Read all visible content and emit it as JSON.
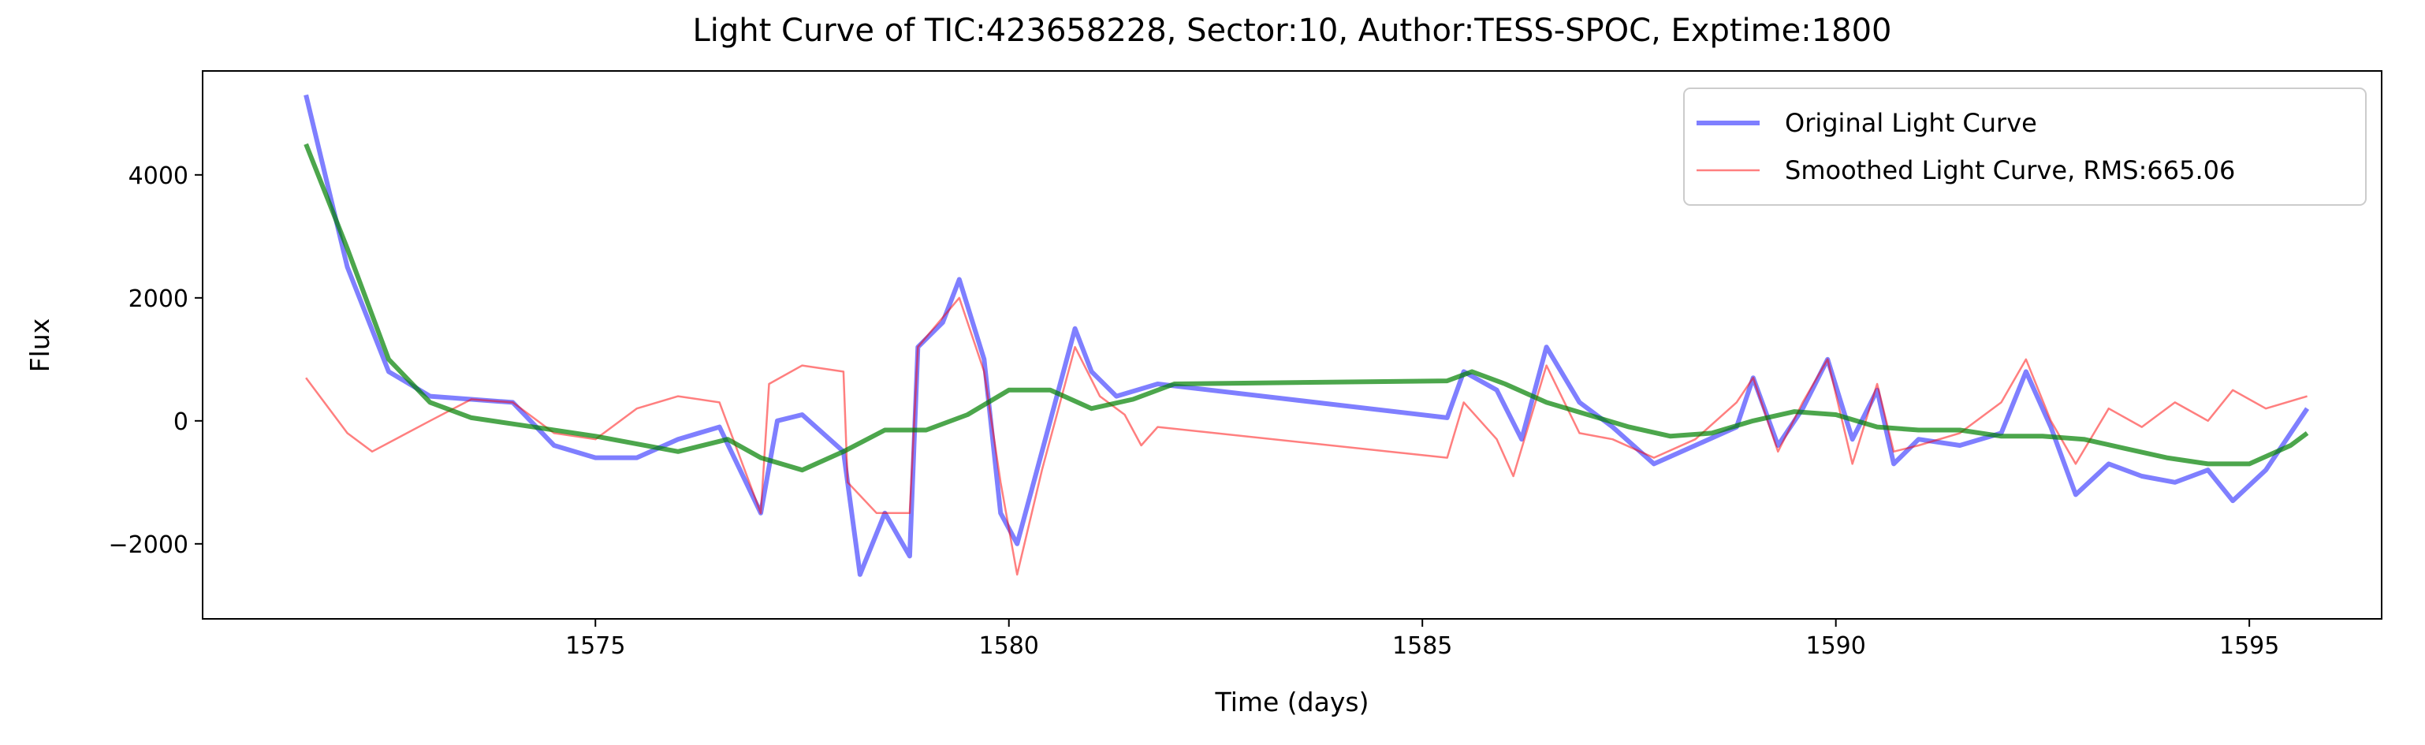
{
  "chart_data": {
    "type": "line",
    "title": "Light Curve of TIC:423658228, Sector:10, Author:TESS-SPOC, Exptime:1800",
    "xlabel": "Time (days)",
    "ylabel": "Flux",
    "xlim": [
      1570.25,
      1596.6
    ],
    "ylim": [
      -3220,
      5690
    ],
    "xticks": [
      1575,
      1580,
      1585,
      1590,
      1595
    ],
    "yticks": [
      {
        "value": -2000,
        "label": "−2000"
      },
      0,
      2000,
      4000
    ],
    "grid": false,
    "legend": "upper right",
    "series": [
      {
        "name": "Original Light Curve",
        "color": "#0000ff",
        "opacity": 0.5,
        "width": 6,
        "x": [
          1571.5,
          1572,
          1572.5,
          1573,
          1574,
          1574.5,
          1575,
          1575.5,
          1576,
          1576.5,
          1577,
          1577.2,
          1577.5,
          1578,
          1578.2,
          1578.5,
          1578.8,
          1578.9,
          1579.2,
          1579.4,
          1579.7,
          1579.9,
          1580.1,
          1580.4,
          1580.8,
          1581,
          1581.3,
          1581.8,
          1585.3,
          1585.5,
          1585.9,
          1586.2,
          1586.5,
          1586.9,
          1587.3,
          1587.8,
          1588.3,
          1588.8,
          1589,
          1589.3,
          1589.6,
          1589.9,
          1590.2,
          1590.5,
          1590.7,
          1591,
          1591.5,
          1592,
          1592.3,
          1592.6,
          1592.9,
          1593.3,
          1593.7,
          1594.1,
          1594.5,
          1594.8,
          1595.2,
          1595.7
        ],
        "values": [
          5300,
          2500,
          800,
          400,
          300,
          -400,
          -600,
          -600,
          -300,
          -100,
          -1500,
          0,
          100,
          -500,
          -2500,
          -1500,
          -2200,
          1200,
          1600,
          2300,
          1000,
          -1500,
          -2000,
          -500,
          1500,
          800,
          400,
          600,
          50,
          800,
          500,
          -300,
          1200,
          300,
          -100,
          -700,
          -400,
          -100,
          700,
          -400,
          200,
          1000,
          -300,
          500,
          -700,
          -300,
          -400,
          -200,
          800,
          -100,
          -1200,
          -700,
          -900,
          -1000,
          -800,
          -1300,
          -800,
          200
        ]
      },
      {
        "name": "Smoothed Light Curve, RMS:665.06",
        "color": "#ff0000",
        "opacity": 0.5,
        "width": 2.5,
        "x": [
          1571.5,
          1572,
          1572.3,
          1573,
          1573.5,
          1574,
          1574.5,
          1575,
          1575.5,
          1576,
          1576.5,
          1577,
          1577.1,
          1577.5,
          1578,
          1578.05,
          1578.4,
          1578.8,
          1578.9,
          1579.4,
          1579.7,
          1579.9,
          1580.1,
          1580.4,
          1580.8,
          1581.1,
          1581.4,
          1581.6,
          1581.8,
          1585.3,
          1585.5,
          1585.9,
          1586.1,
          1586.5,
          1586.9,
          1587.3,
          1587.8,
          1588.3,
          1588.8,
          1589,
          1589.3,
          1589.6,
          1589.9,
          1590.2,
          1590.5,
          1590.7,
          1591,
          1591.5,
          1592,
          1592.3,
          1592.6,
          1592.9,
          1593.3,
          1593.7,
          1594.1,
          1594.5,
          1594.8,
          1595.2,
          1595.7
        ],
        "values": [
          700,
          -200,
          -500,
          0,
          350,
          300,
          -200,
          -300,
          200,
          400,
          300,
          -1500,
          600,
          900,
          800,
          -1000,
          -1500,
          -1500,
          1200,
          2000,
          800,
          -1000,
          -2500,
          -800,
          1200,
          400,
          100,
          -400,
          -100,
          -600,
          300,
          -300,
          -900,
          900,
          -200,
          -300,
          -600,
          -300,
          300,
          700,
          -500,
          300,
          1000,
          -700,
          600,
          -500,
          -400,
          -200,
          300,
          1000,
          0,
          -700,
          200,
          -100,
          300,
          0,
          500,
          200,
          400
        ]
      },
      {
        "color": "#008000",
        "opacity": 0.7,
        "width": 6,
        "x": [
          1571.5,
          1572,
          1572.5,
          1573,
          1573.5,
          1574,
          1575,
          1576,
          1576.6,
          1577,
          1577.5,
          1578,
          1578.5,
          1579,
          1579.5,
          1580,
          1580.5,
          1581,
          1581.5,
          1582,
          1585.3,
          1585.6,
          1586,
          1586.5,
          1587,
          1587.5,
          1588,
          1588.5,
          1589,
          1589.5,
          1590,
          1590.5,
          1591,
          1591.5,
          1592,
          1592.5,
          1593,
          1593.5,
          1594,
          1594.5,
          1595,
          1595.5,
          1595.7
        ],
        "values": [
          4500,
          2800,
          1000,
          300,
          50,
          -50,
          -250,
          -500,
          -300,
          -600,
          -800,
          -500,
          -150,
          -150,
          100,
          500,
          500,
          200,
          350,
          600,
          650,
          800,
          600,
          300,
          100,
          -100,
          -250,
          -200,
          0,
          150,
          100,
          -100,
          -150,
          -150,
          -250,
          -250,
          -300,
          -450,
          -600,
          -700,
          -700,
          -400,
          -200
        ]
      }
    ]
  }
}
